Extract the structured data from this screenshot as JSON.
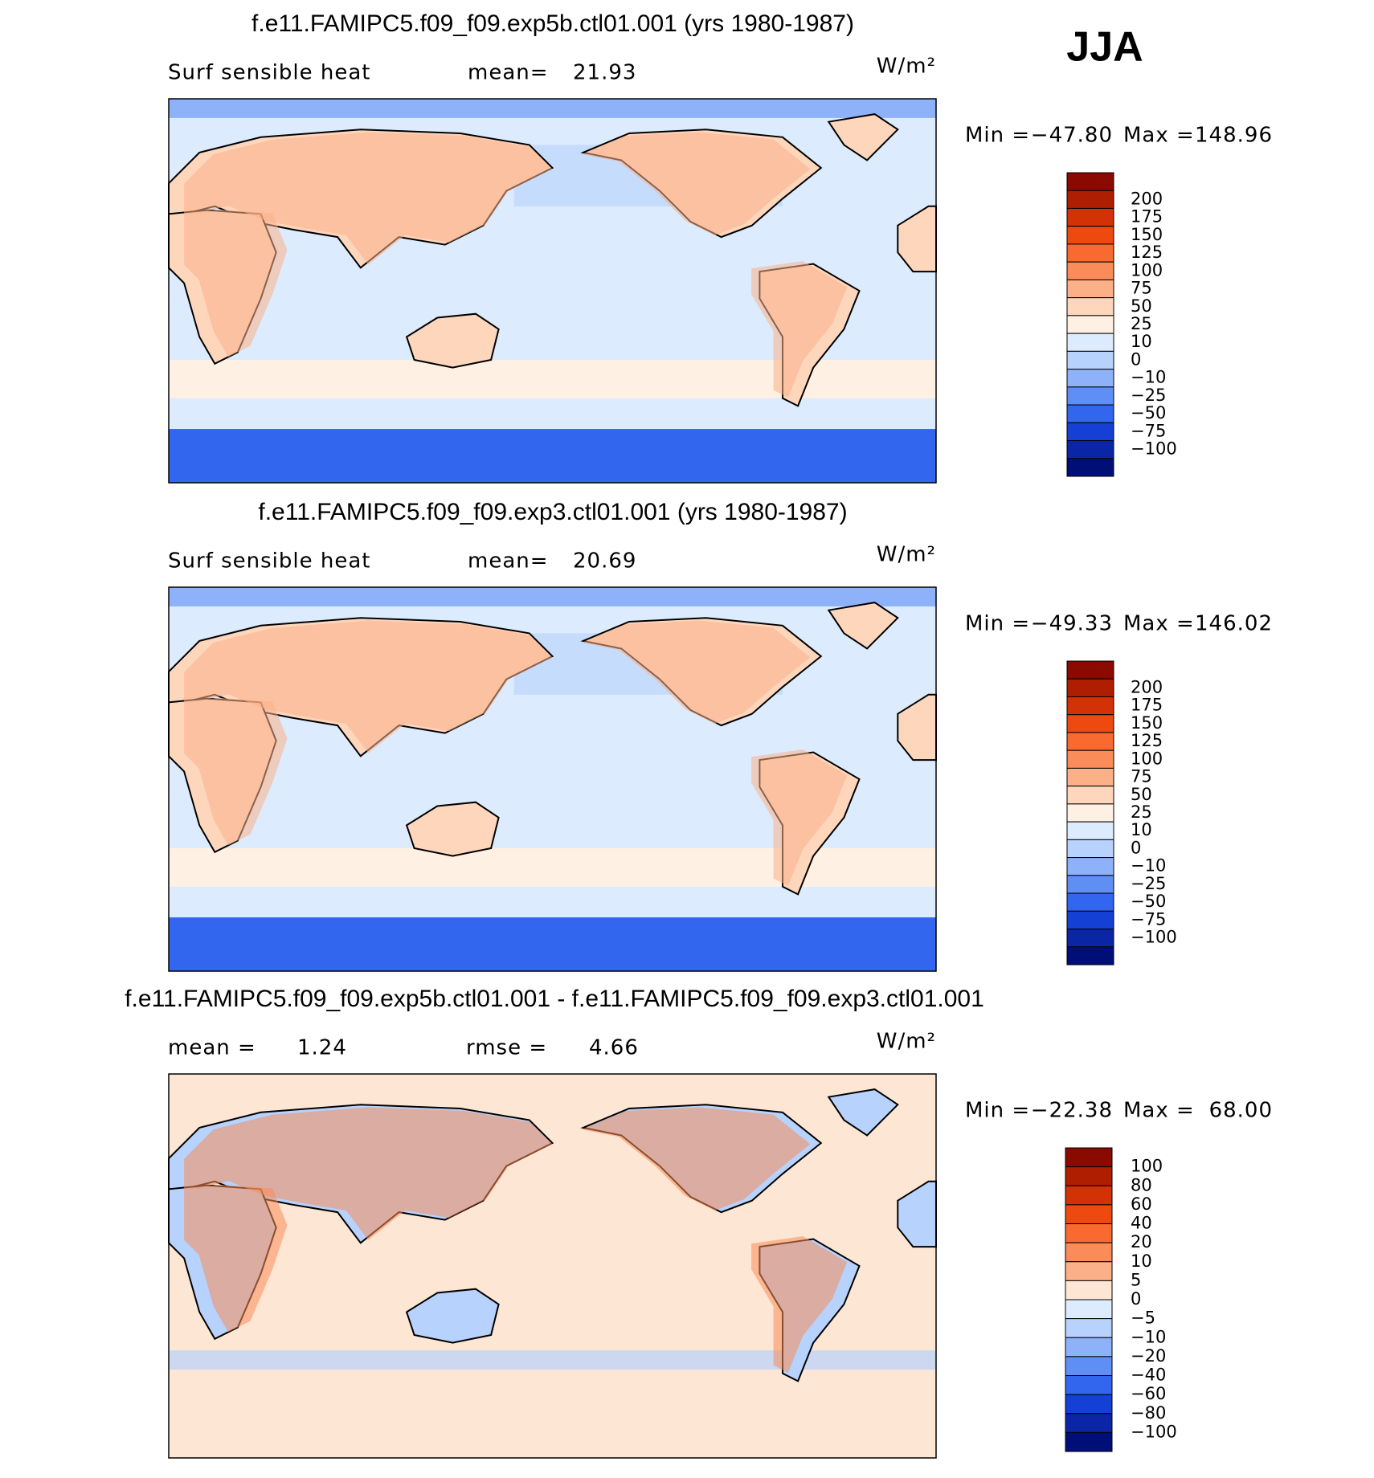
{
  "season": "JJA",
  "panels": [
    {
      "title": "f.e11.FAMIPC5.f09_f09.exp5b.ctl01.001 (yrs 1980-1987)",
      "variable": "Surf sensible heat",
      "mean_label": "mean=",
      "mean": "21.93",
      "units": "W/m²",
      "min_label": "Min =",
      "min": "−47.80",
      "max_label": "Max =",
      "max": "148.96",
      "colorbar": {
        "labels": [
          "200",
          "175",
          "150",
          "125",
          "100",
          "75",
          "50",
          "25",
          "10",
          "0",
          "−10",
          "−25",
          "−50",
          "−75",
          "−100"
        ],
        "colors": [
          "#8b0a00",
          "#b01e00",
          "#d23205",
          "#ee4a10",
          "#f86a30",
          "#f98c58",
          "#fbb088",
          "#fdd6bc",
          "#fff0e4",
          "#dcebfd",
          "#b7d2fc",
          "#8eb2fa",
          "#5f8ef5",
          "#3266ee",
          "#1440d6",
          "#0a26a6",
          "#000f78"
        ]
      }
    },
    {
      "title": "f.e11.FAMIPC5.f09_f09.exp3.ctl01.001 (yrs 1980-1987)",
      "variable": "Surf sensible heat",
      "mean_label": "mean=",
      "mean": "20.69",
      "units": "W/m²",
      "min_label": "Min =",
      "min": "−49.33",
      "max_label": "Max =",
      "max": "146.02",
      "colorbar": {
        "labels": [
          "200",
          "175",
          "150",
          "125",
          "100",
          "75",
          "50",
          "25",
          "10",
          "0",
          "−10",
          "−25",
          "−50",
          "−75",
          "−100"
        ],
        "colors": [
          "#8b0a00",
          "#b01e00",
          "#d23205",
          "#ee4a10",
          "#f86a30",
          "#f98c58",
          "#fbb088",
          "#fdd6bc",
          "#fff0e4",
          "#dcebfd",
          "#b7d2fc",
          "#8eb2fa",
          "#5f8ef5",
          "#3266ee",
          "#1440d6",
          "#0a26a6",
          "#000f78"
        ]
      }
    },
    {
      "title": "f.e11.FAMIPC5.f09_f09.exp5b.ctl01.001 - f.e11.FAMIPC5.f09_f09.exp3.ctl01.001",
      "mean_label": "mean =",
      "mean": "1.24",
      "rmse_label": "rmse =",
      "rmse": "4.66",
      "units": "W/m²",
      "min_label": "Min =",
      "min": "−22.38",
      "max_label": "Max =",
      "max": "68.00",
      "colorbar": {
        "labels": [
          "100",
          "80",
          "60",
          "40",
          "20",
          "10",
          "5",
          "0",
          "−5",
          "−10",
          "−20",
          "−40",
          "−60",
          "−80",
          "−100"
        ],
        "colors": [
          "#8b0a00",
          "#b01e00",
          "#d23205",
          "#ee4a10",
          "#f86a30",
          "#f98c58",
          "#fbb088",
          "#fde6d4",
          "#dcebfd",
          "#b7d2fc",
          "#8eb2fa",
          "#5f8ef5",
          "#3266ee",
          "#1440d6",
          "#0a26a6",
          "#000f78"
        ]
      }
    }
  ]
}
